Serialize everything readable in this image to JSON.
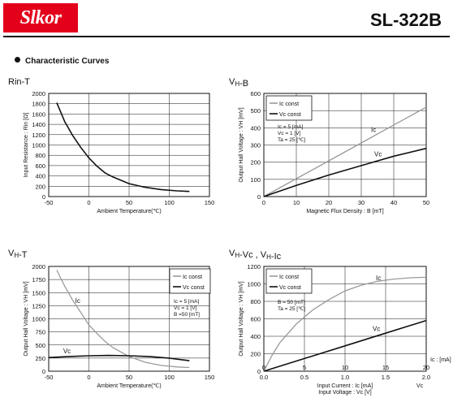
{
  "header": {
    "logo": "Slkor",
    "part_number": "SL-322B",
    "section_title": "Characteristic Curves"
  },
  "colors": {
    "brand_red": "#e3001b",
    "dark_curve": "#111111",
    "light_curve": "#9a9a9a"
  },
  "chart_data": [
    {
      "id": "rin-t",
      "type": "line",
      "title": "Rin-T",
      "xlabel": "Ambient Temperature(℃)",
      "ylabel": "Input Resistance : Rin [Ω]",
      "xlim": [
        -50,
        150
      ],
      "ylim": [
        0,
        2000
      ],
      "xticks": [
        -50,
        0,
        50,
        100,
        150
      ],
      "yticks": [
        0,
        200,
        400,
        600,
        800,
        1000,
        1200,
        1400,
        1600,
        1800,
        2000
      ],
      "grid": true,
      "series": [
        {
          "color": "dark",
          "x": [
            -40,
            -30,
            -20,
            -10,
            0,
            10,
            20,
            30,
            50,
            70,
            90,
            110,
            125
          ],
          "y": [
            1820,
            1450,
            1180,
            950,
            750,
            590,
            460,
            380,
            250,
            180,
            135,
            110,
            100
          ]
        }
      ]
    },
    {
      "id": "vh-b",
      "type": "line",
      "title": "VH-B",
      "xlabel": "Magnetic Flux Density : B [mT]",
      "ylabel": "Output Hall Voltage : VH [mV]",
      "xlim": [
        0,
        50
      ],
      "ylim": [
        0,
        600
      ],
      "xticks": [
        0,
        10,
        20,
        30,
        40,
        50
      ],
      "yticks": [
        0,
        100,
        200,
        300,
        400,
        500,
        600
      ],
      "grid": true,
      "legend": [
        "Ic const",
        "Vc const"
      ],
      "legend_position": "top-left",
      "conditions": [
        "Ic = 5 [mA]",
        "Vc = 1 [V]",
        "Ta = 25 [℃]"
      ],
      "series": [
        {
          "name": "Ic const",
          "label": "Ic",
          "label_at": [
            33,
            375
          ],
          "color": "light",
          "x": [
            0,
            10,
            20,
            30,
            40,
            50
          ],
          "y": [
            0,
            104,
            208,
            312,
            416,
            520
          ]
        },
        {
          "name": "Vc const",
          "label": "Vc",
          "label_at": [
            34,
            235
          ],
          "color": "dark",
          "x": [
            0,
            10,
            20,
            30,
            40,
            50
          ],
          "y": [
            0,
            65,
            125,
            180,
            235,
            280
          ]
        }
      ]
    },
    {
      "id": "vh-t",
      "type": "line",
      "title": "VH-T",
      "xlabel": "Ambient Temperature(℃)",
      "ylabel": "Output Hall Voltage : VH [mV]",
      "xlim": [
        -50,
        150
      ],
      "ylim": [
        0,
        2000
      ],
      "xticks": [
        -50,
        0,
        50,
        100,
        150
      ],
      "yticks": [
        0,
        250,
        500,
        750,
        1000,
        1250,
        1500,
        1750,
        2000
      ],
      "grid": true,
      "legend": [
        "Ic const",
        "Vc const"
      ],
      "legend_position": "top-right",
      "conditions": [
        "Ic = 5 [mA]",
        "Vc = 1 [V]",
        "B =50 [mT]"
      ],
      "series": [
        {
          "name": "Ic const",
          "label": "Ic",
          "label_at": [
            -17,
            1300
          ],
          "color": "light",
          "x": [
            -40,
            -30,
            -20,
            -10,
            0,
            10,
            20,
            30,
            50,
            70,
            90,
            110,
            125
          ],
          "y": [
            1930,
            1620,
            1350,
            1120,
            880,
            720,
            570,
            450,
            280,
            170,
            110,
            80,
            70
          ]
        },
        {
          "name": "Vc const",
          "label": "Vc",
          "label_at": [
            -32,
            340
          ],
          "color": "dark",
          "x": [
            -50,
            -25,
            0,
            25,
            50,
            75,
            100,
            125
          ],
          "y": [
            260,
            280,
            295,
            300,
            295,
            280,
            250,
            200
          ]
        }
      ]
    },
    {
      "id": "vh-vc-ic",
      "type": "line",
      "title": "VH-Vc , VH-Ic",
      "xlabel": "Input Current : Ic [mA]",
      "xlabel2": "Input Voltage : Vc [V]",
      "xlabel_right": "Ic : [mA]",
      "xlabel_right2": "Vc",
      "ylabel": "Output Hall Voltage : VH [mV]",
      "xlim": [
        0,
        20
      ],
      "ylim": [
        0,
        1200
      ],
      "xticks_top": [
        0,
        5,
        10,
        15,
        20
      ],
      "xticks": [
        "0.0",
        "0.5",
        "1.0",
        "1.5",
        "2.0"
      ],
      "yticks": [
        0,
        200,
        400,
        600,
        800,
        1000,
        1200
      ],
      "grid": true,
      "legend": [
        "Ic const",
        "Vc const"
      ],
      "legend_position": "top-left",
      "conditions": [
        "B = 50 [mT]",
        "Ta = 25 [℃]"
      ],
      "series": [
        {
          "name": "Ic const",
          "label": "Ic",
          "label_at": [
            13.8,
            1040
          ],
          "color": "light",
          "x": [
            0,
            1,
            2,
            4,
            6,
            8,
            10,
            12,
            14,
            16,
            18,
            20
          ],
          "y": [
            0,
            180,
            330,
            540,
            700,
            820,
            920,
            985,
            1030,
            1055,
            1070,
            1075
          ]
        },
        {
          "name": "Vc const",
          "label": "Vc",
          "label_at": [
            13.4,
            460
          ],
          "color": "dark",
          "x": [
            0,
            5,
            10,
            15,
            20
          ],
          "y": [
            0,
            145,
            290,
            435,
            580
          ]
        }
      ]
    }
  ]
}
